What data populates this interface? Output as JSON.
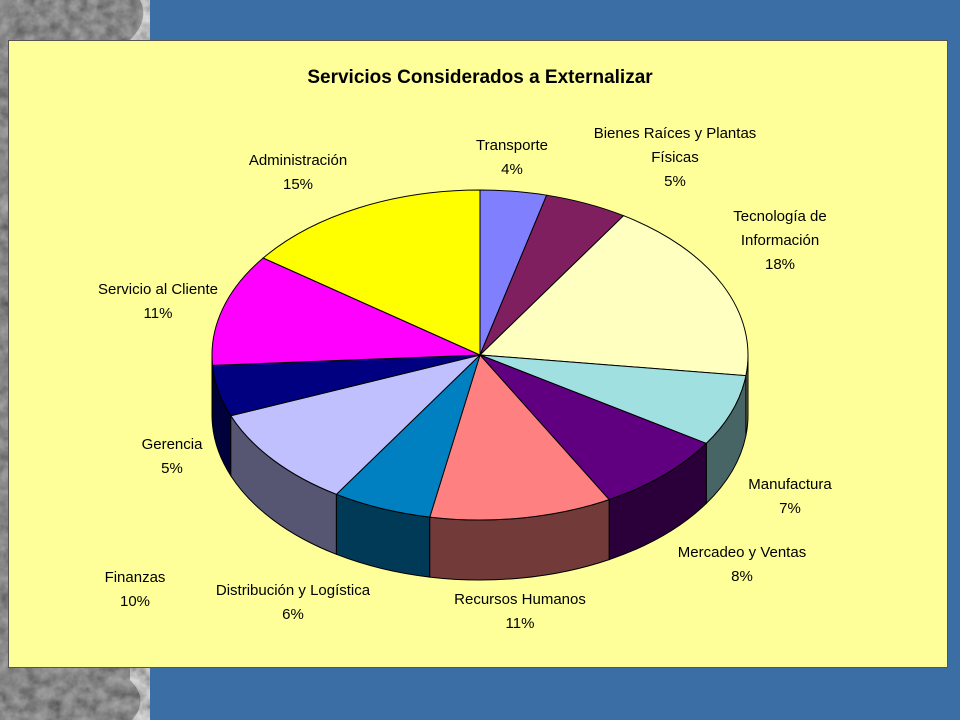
{
  "chart_data": {
    "type": "pie3d",
    "title": "Servicios Considerados a Externalizar",
    "categories": [
      "Transporte",
      "Bienes Raíces y Plantas Físicas",
      "Tecnología de Información",
      "Manufactura",
      "Mercadeo y Ventas",
      "Recursos Humanos",
      "Distribución y Logística",
      "Finanzas",
      "Gerencia",
      "Servicio al Cliente",
      "Administración"
    ],
    "values": [
      4,
      5,
      18,
      7,
      8,
      11,
      6,
      10,
      5,
      11,
      15
    ],
    "value_labels": [
      "4%",
      "5%",
      "18%",
      "7%",
      "8%",
      "11%",
      "6%",
      "10%",
      "5%",
      "11%",
      "15%"
    ],
    "colors": [
      "#8080ff",
      "#7f1f5f",
      "#ffffc0",
      "#a0e0e0",
      "#600080",
      "#ff8080",
      "#0080c0",
      "#c0c0ff",
      "#000080",
      "#ff00ff",
      "#ffff00"
    ]
  }
}
